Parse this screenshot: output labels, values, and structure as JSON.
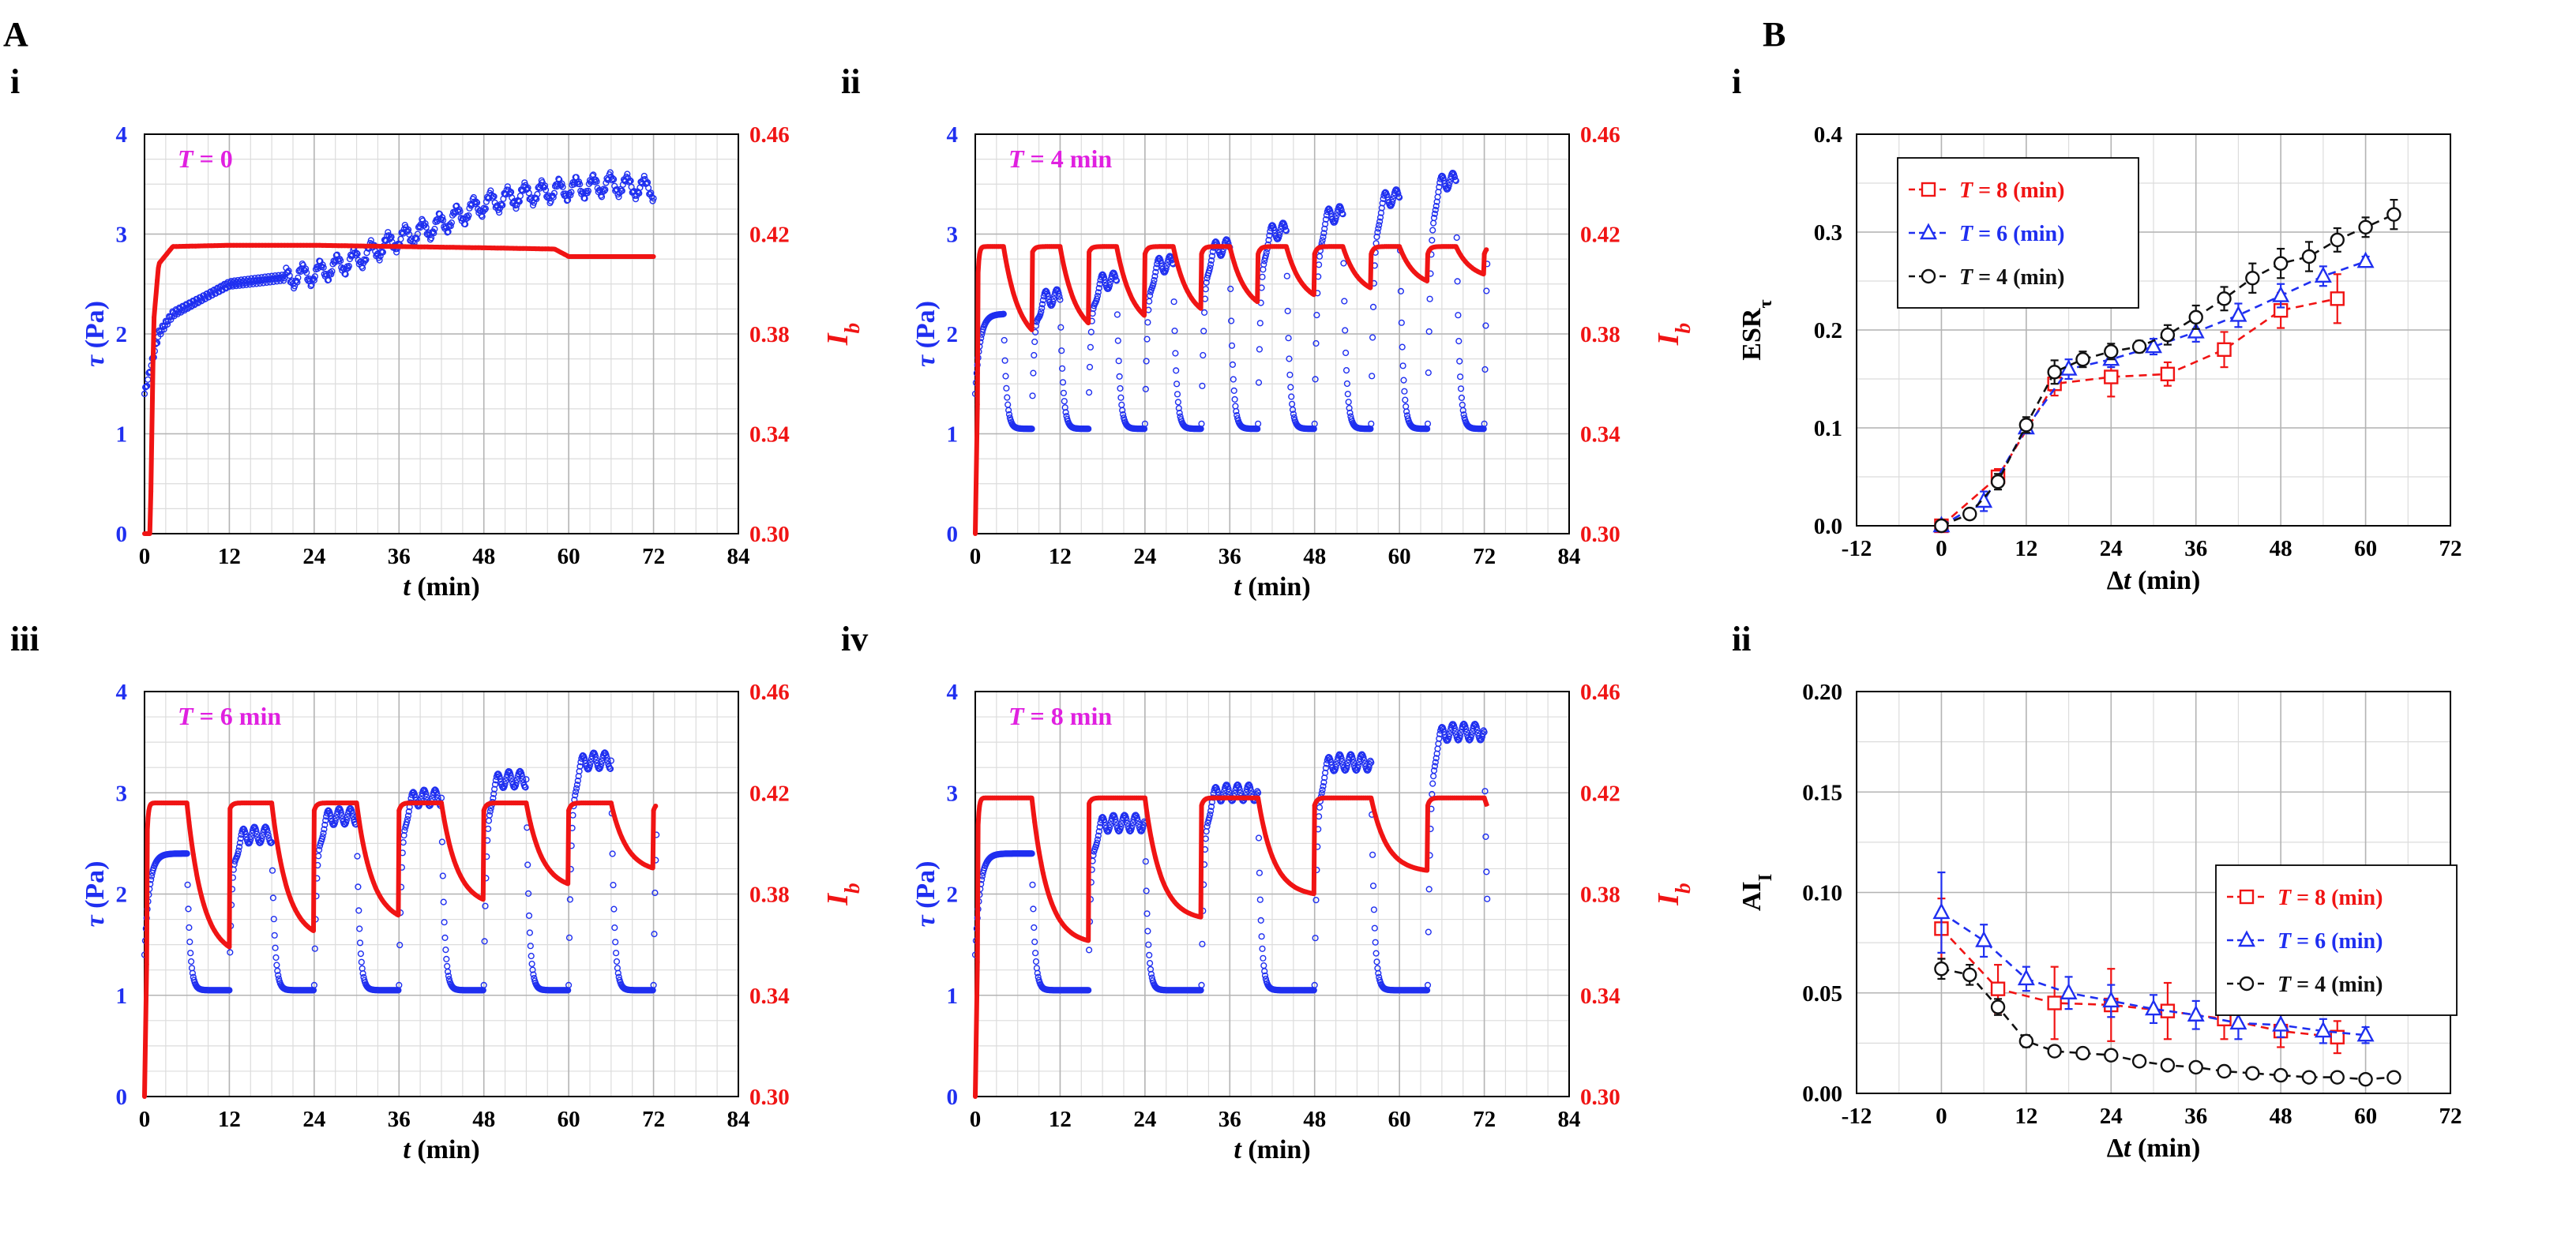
{
  "figure": {
    "panel_A_label": "A",
    "panel_B_label": "B",
    "colors": {
      "blue": "#1f2ff0",
      "red": "#f01414",
      "magenta": "#e020e0",
      "black": "#111111",
      "grid_major": "#b4b4b4",
      "grid_minor": "#dcdcdc"
    }
  },
  "chart_data": [
    {
      "id": "A-i",
      "type": "line",
      "sub_label": "i",
      "annotation": "T = 0",
      "xlabel": "t (min)",
      "ylabel_left": "τ (Pa)",
      "ylabel_right": "Ib",
      "xlim": [
        0,
        84
      ],
      "xticks": [
        0,
        12,
        24,
        36,
        48,
        60,
        72,
        84
      ],
      "ylim_left": [
        0,
        4
      ],
      "yticks_left": [
        0,
        1,
        2,
        3,
        4
      ],
      "ylim_right": [
        0.3,
        0.46
      ],
      "yticks_right": [
        "0.30",
        "0.34",
        "0.38",
        "0.42",
        "0.46"
      ],
      "T_period_min": 0,
      "t_end": 73,
      "series": [
        {
          "name": "τ",
          "axis": "left",
          "color": "#1f2ff0",
          "style": "open-circles",
          "x": [
            0,
            1,
            2,
            4,
            8,
            12,
            18,
            24,
            30,
            36,
            42,
            48,
            54,
            60,
            66,
            72
          ],
          "y": [
            1.4,
            1.7,
            2.0,
            2.2,
            2.35,
            2.5,
            2.55,
            2.6,
            2.75,
            2.95,
            3.1,
            3.3,
            3.4,
            3.45,
            3.5,
            3.45
          ]
        },
        {
          "name": "Ib",
          "axis": "right",
          "color": "#f01414",
          "style": "filled",
          "x": [
            0,
            0.8,
            1.3,
            2,
            4,
            12,
            24,
            36,
            48,
            58,
            60,
            72
          ],
          "y": [
            0.3,
            0.3,
            0.385,
            0.408,
            0.415,
            0.4155,
            0.4155,
            0.415,
            0.4145,
            0.414,
            0.411,
            0.411
          ]
        }
      ]
    },
    {
      "id": "A-ii",
      "type": "line",
      "sub_label": "ii",
      "annotation": "T = 4 min",
      "xlabel": "t (min)",
      "ylabel_left": "τ (Pa)",
      "ylabel_right": "Ib",
      "xlim": [
        0,
        84
      ],
      "xticks": [
        0,
        12,
        24,
        36,
        48,
        60,
        72,
        84
      ],
      "ylim_left": [
        0,
        4
      ],
      "yticks_left": [
        0,
        1,
        2,
        3,
        4
      ],
      "ylim_right": [
        0.3,
        0.46
      ],
      "yticks_right": [
        "0.30",
        "0.34",
        "0.38",
        "0.42",
        "0.46"
      ],
      "T_period_min": 4,
      "t_end": 73,
      "tau_peak_start": 2.2,
      "tau_peak_end": 3.7,
      "tau_min": 1.05,
      "ib_high": 0.415,
      "ib_low_start": 0.375,
      "ib_low_end": 0.405
    },
    {
      "id": "A-iii",
      "type": "line",
      "sub_label": "iii",
      "annotation": "T = 6 min",
      "xlabel": "t (min)",
      "ylabel_left": "τ (Pa)",
      "ylabel_right": "Ib",
      "xlim": [
        0,
        84
      ],
      "xticks": [
        0,
        12,
        24,
        36,
        48,
        60,
        72,
        84
      ],
      "ylim_left": [
        0,
        4
      ],
      "yticks_left": [
        0,
        1,
        2,
        3,
        4
      ],
      "ylim_right": [
        0.3,
        0.46
      ],
      "yticks_right": [
        "0.30",
        "0.34",
        "0.38",
        "0.42",
        "0.46"
      ],
      "T_period_min": 6,
      "t_end": 73,
      "tau_peak_start": 2.4,
      "tau_peak_end": 3.5,
      "tau_min": 1.05,
      "ib_high": 0.416,
      "ib_low_start": 0.355,
      "ib_low_end": 0.395
    },
    {
      "id": "A-iv",
      "type": "line",
      "sub_label": "iv",
      "annotation": "T = 8 min",
      "xlabel": "t (min)",
      "ylabel_left": "τ (Pa)",
      "ylabel_right": "Ib",
      "xlim": [
        0,
        84
      ],
      "xticks": [
        0,
        12,
        24,
        36,
        48,
        60,
        72,
        84
      ],
      "ylim_left": [
        0,
        4
      ],
      "yticks_left": [
        0,
        1,
        2,
        3,
        4
      ],
      "ylim_right": [
        0.3,
        0.46
      ],
      "yticks_right": [
        "0.30",
        "0.34",
        "0.38",
        "0.42",
        "0.46"
      ],
      "T_period_min": 8,
      "t_end": 73,
      "tau_peak_start": 2.4,
      "tau_peak_end": 3.6,
      "tau_min": 1.05,
      "ib_high": 0.418,
      "ib_low_start": 0.36,
      "ib_low_end": 0.398
    },
    {
      "id": "B-i",
      "type": "line",
      "sub_label": "i",
      "xlabel": "Δt (min)",
      "ylabel": "ESRτ",
      "xlim": [
        -12,
        72
      ],
      "xticks": [
        -12,
        0,
        12,
        24,
        36,
        48,
        60,
        72
      ],
      "ylim": [
        0,
        0.4
      ],
      "yticks": [
        "0.0",
        "0.1",
        "0.2",
        "0.3",
        "0.4"
      ],
      "legend_position": "top-left",
      "series": [
        {
          "name": "T = 8 (min)",
          "color": "#f01414",
          "marker": "square",
          "x": [
            0,
            8,
            16,
            24,
            32,
            40,
            48,
            56
          ],
          "y": [
            0.0,
            0.05,
            0.145,
            0.152,
            0.155,
            0.18,
            0.22,
            0.232
          ],
          "err": [
            0.003,
            0.008,
            0.012,
            0.02,
            0.012,
            0.018,
            0.018,
            0.025
          ]
        },
        {
          "name": "T = 6 (min)",
          "color": "#1f2ff0",
          "marker": "triangle",
          "x": [
            0,
            6,
            12,
            18,
            24,
            30,
            36,
            42,
            48,
            54,
            60
          ],
          "y": [
            0.0,
            0.025,
            0.1,
            0.16,
            0.17,
            0.183,
            0.198,
            0.215,
            0.235,
            0.255,
            0.27
          ],
          "err": [
            0.002,
            0.01,
            0.005,
            0.01,
            0.008,
            0.008,
            0.01,
            0.012,
            0.012,
            0.01,
            0.005
          ]
        },
        {
          "name": "T = 4 (min)",
          "color": "#111111",
          "marker": "circle",
          "x": [
            0,
            4,
            8,
            12,
            16,
            20,
            24,
            28,
            32,
            36,
            40,
            44,
            48,
            52,
            56,
            60,
            64
          ],
          "y": [
            0.0,
            0.012,
            0.045,
            0.103,
            0.157,
            0.17,
            0.178,
            0.183,
            0.195,
            0.213,
            0.232,
            0.253,
            0.268,
            0.275,
            0.292,
            0.305,
            0.318
          ],
          "err": [
            0.002,
            0.005,
            0.008,
            0.008,
            0.012,
            0.008,
            0.008,
            0.006,
            0.01,
            0.012,
            0.012,
            0.015,
            0.015,
            0.015,
            0.012,
            0.01,
            0.015
          ]
        }
      ]
    },
    {
      "id": "B-ii",
      "type": "line",
      "sub_label": "ii",
      "xlabel": "Δt (min)",
      "ylabel": "AII",
      "xlim": [
        -12,
        72
      ],
      "xticks": [
        -12,
        0,
        12,
        24,
        36,
        48,
        60,
        72
      ],
      "ylim": [
        0,
        0.2
      ],
      "yticks": [
        "0.00",
        "0.05",
        "0.10",
        "0.15",
        "0.20"
      ],
      "legend_position": "center-right",
      "series": [
        {
          "name": "T = 8 (min)",
          "color": "#f01414",
          "marker": "square",
          "x": [
            0,
            8,
            16,
            24,
            32,
            40,
            48,
            56
          ],
          "y": [
            0.082,
            0.052,
            0.045,
            0.044,
            0.041,
            0.037,
            0.031,
            0.028
          ],
          "err": [
            0.015,
            0.012,
            0.018,
            0.018,
            0.014,
            0.01,
            0.008,
            0.008
          ]
        },
        {
          "name": "T = 6 (min)",
          "color": "#1f2ff0",
          "marker": "triangle",
          "x": [
            0,
            6,
            12,
            18,
            24,
            30,
            36,
            42,
            48,
            54,
            60
          ],
          "y": [
            0.09,
            0.076,
            0.057,
            0.05,
            0.046,
            0.042,
            0.039,
            0.035,
            0.034,
            0.031,
            0.029
          ],
          "err": [
            0.02,
            0.008,
            0.006,
            0.008,
            0.008,
            0.007,
            0.007,
            0.008,
            0.006,
            0.006,
            0.004
          ]
        },
        {
          "name": "T = 4 (min)",
          "color": "#111111",
          "marker": "circle",
          "x": [
            0,
            4,
            8,
            12,
            16,
            20,
            24,
            28,
            32,
            36,
            40,
            44,
            48,
            52,
            56,
            60,
            64
          ],
          "y": [
            0.062,
            0.059,
            0.043,
            0.026,
            0.021,
            0.02,
            0.019,
            0.016,
            0.014,
            0.013,
            0.011,
            0.01,
            0.009,
            0.008,
            0.008,
            0.007,
            0.008
          ],
          "err": [
            0.005,
            0.005,
            0.004,
            0.003,
            0.002,
            0.002,
            0.002,
            0.002,
            0.002,
            0.002,
            0.002,
            0.002,
            0.002,
            0.002,
            0.002,
            0.002,
            0.002
          ]
        }
      ]
    }
  ]
}
